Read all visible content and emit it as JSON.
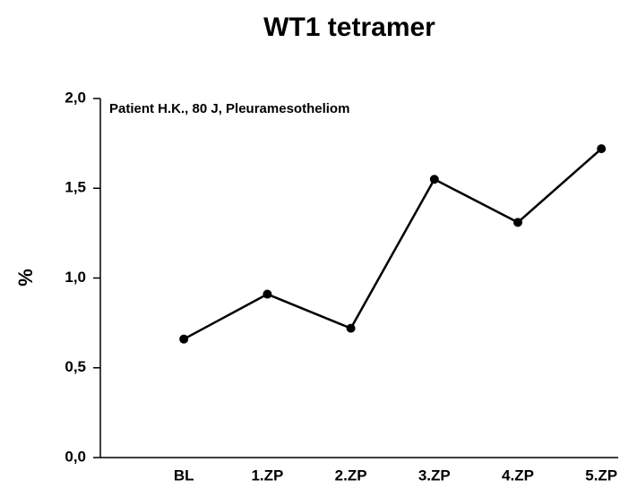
{
  "chart_data": {
    "type": "line",
    "title": "WT1 tetramer",
    "annotation": "Patient H.K., 80 J, Pleuramesotheliom",
    "y_label": "%",
    "categories": [
      "BL",
      "1.ZP",
      "2.ZP",
      "3.ZP",
      "4.ZP",
      "5.ZP"
    ],
    "series": [
      {
        "name": "WT1 tetramer",
        "color": "#000000",
        "values": [
          0.66,
          0.91,
          0.72,
          1.55,
          1.31,
          1.72
        ]
      }
    ],
    "ylim": [
      0,
      2
    ],
    "yticks": [
      {
        "value": 0,
        "label": "0,0"
      },
      {
        "value": 0.5,
        "label": "0,5"
      },
      {
        "value": 1,
        "label": "1,0"
      },
      {
        "value": 1.5,
        "label": "1,5"
      },
      {
        "value": 2,
        "label": "2,0"
      }
    ],
    "grid": false
  }
}
